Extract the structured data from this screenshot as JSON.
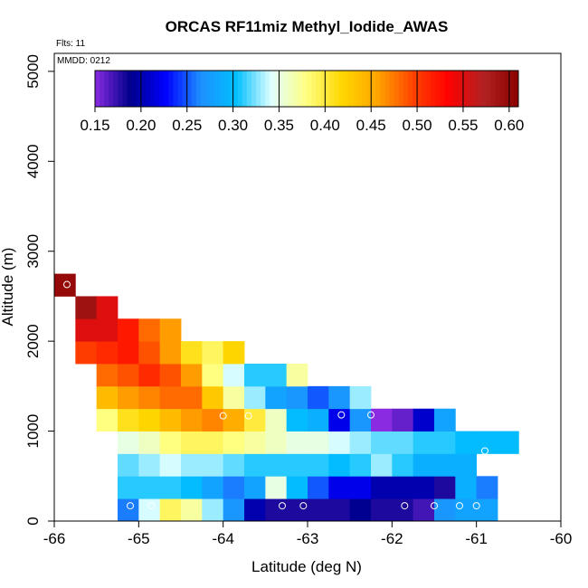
{
  "chart_data": {
    "type": "heatmap",
    "title": "ORCAS RF11miz Methyl_Iodide_AWAS",
    "flights_label": "Flts: 11",
    "date_label": "MMDD: 0212",
    "xlabel": "Latitude (deg N)",
    "ylabel": "Altitude (m)",
    "xlim": [
      -66,
      -60
    ],
    "ylim": [
      0,
      5200
    ],
    "x_ticks": [
      -66,
      -65,
      -64,
      -63,
      -62,
      -61,
      -60
    ],
    "x_tick_labels": [
      "-66",
      "-65",
      "-64",
      "-63",
      "-62",
      "-61",
      "-60"
    ],
    "y_ticks": [
      0,
      1000,
      2000,
      3000,
      4000,
      5000
    ],
    "y_tick_labels": [
      "0",
      "1000",
      "2000",
      "3000",
      "4000",
      "5000"
    ],
    "cell_width_deg": 0.25,
    "cell_height_m": 250,
    "colorbar": {
      "range": [
        0.15,
        0.61
      ],
      "ticks": [
        0.15,
        0.2,
        0.25,
        0.3,
        0.35,
        0.4,
        0.45,
        0.5,
        0.55,
        0.6
      ],
      "tick_labels": [
        "0.15",
        "0.20",
        "0.25",
        "0.30",
        "0.35",
        "0.40",
        "0.45",
        "0.50",
        "0.55",
        "0.60"
      ],
      "colors": [
        "#8a2be2",
        "#00008b",
        "#0000ff",
        "#1e90ff",
        "#00bfff",
        "#e0ffff",
        "#ffff80",
        "#ffd700",
        "#ffa500",
        "#ff4500",
        "#ff0000",
        "#b22222",
        "#8b0000"
      ]
    },
    "rows": [
      {
        "alt_bottom": 0,
        "x_start": -65.25,
        "values": [
          0.26,
          0.34,
          0.39,
          0.37,
          0.33,
          0.27,
          0.2,
          0.18,
          0.18,
          0.18,
          0.18,
          0.19,
          0.18,
          0.18,
          0.17,
          0.27,
          0.28,
          0.28
        ]
      },
      {
        "alt_bottom": 250,
        "x_start": -65.25,
        "values": [
          0.31,
          0.31,
          0.31,
          0.3,
          0.28,
          0.26,
          0.28,
          0.35,
          0.3,
          0.25,
          0.22,
          0.22,
          0.2,
          0.2,
          0.2,
          0.18,
          0.29,
          0.26
        ]
      },
      {
        "alt_bottom": 500,
        "x_start": -65.25,
        "values": [
          0.32,
          0.33,
          0.34,
          0.33,
          0.33,
          0.32,
          0.31,
          0.31,
          0.31,
          0.31,
          0.3,
          0.31,
          0.33,
          0.31,
          0.29,
          0.29,
          0.29,
          null
        ]
      },
      {
        "alt_bottom": 750,
        "x_start": -65.25,
        "values": [
          0.35,
          0.36,
          0.38,
          0.39,
          0.39,
          0.38,
          0.37,
          0.36,
          0.35,
          0.35,
          0.34,
          0.33,
          0.32,
          0.32,
          0.31,
          0.31,
          0.3,
          0.3,
          0.3
        ]
      },
      {
        "alt_bottom": 1000,
        "x_start": -65.5,
        "values": [
          0.38,
          0.41,
          0.42,
          0.44,
          0.46,
          0.47,
          0.45,
          0.4,
          0.36,
          0.3,
          0.29,
          0.22,
          0.27,
          0.15,
          0.16,
          0.21,
          0.28
        ]
      },
      {
        "alt_bottom": 1250,
        "x_start": -65.5,
        "values": [
          0.44,
          0.46,
          0.47,
          0.48,
          0.48,
          0.43,
          0.37,
          0.33,
          0.28,
          0.27,
          0.25,
          0.27,
          0.33
        ]
      },
      {
        "alt_bottom": 1500,
        "x_start": -65.5,
        "values": [
          0.48,
          0.49,
          0.51,
          0.49,
          0.46,
          0.38,
          0.34,
          0.31,
          0.31,
          0.37
        ]
      },
      {
        "alt_bottom": 1750,
        "x_start": -65.75,
        "values": [
          0.5,
          0.51,
          0.52,
          0.49,
          0.46,
          0.41,
          0.39,
          0.42
        ]
      },
      {
        "alt_bottom": 2000,
        "x_start": -65.75,
        "values": [
          0.55,
          0.55,
          0.52,
          0.48,
          0.46
        ]
      },
      {
        "alt_bottom": 2250,
        "x_start": -65.75,
        "values": [
          0.59,
          0.55
        ]
      },
      {
        "alt_bottom": 2500,
        "x_start": -66,
        "values": [
          0.6
        ]
      }
    ],
    "sample_points": [
      {
        "lat": -65.1,
        "alt": 170
      },
      {
        "lat": -64.85,
        "alt": 170
      },
      {
        "lat": -63.3,
        "alt": 170
      },
      {
        "lat": -63.05,
        "alt": 170
      },
      {
        "lat": -61.85,
        "alt": 170
      },
      {
        "lat": -61.5,
        "alt": 170
      },
      {
        "lat": -61.2,
        "alt": 170
      },
      {
        "lat": -61.0,
        "alt": 170
      },
      {
        "lat": -60.9,
        "alt": 780
      },
      {
        "lat": -64.0,
        "alt": 1170
      },
      {
        "lat": -63.7,
        "alt": 1170
      },
      {
        "lat": -62.6,
        "alt": 1180
      },
      {
        "lat": -62.25,
        "alt": 1180
      },
      {
        "lat": -65.85,
        "alt": 2630
      }
    ]
  }
}
